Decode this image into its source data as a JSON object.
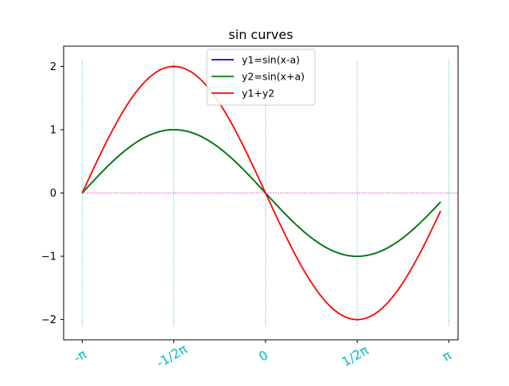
{
  "chart_data": {
    "type": "line",
    "title": "sin curves",
    "xlabel": "",
    "ylabel": "",
    "xlim": [
      -3.46,
      3.3
    ],
    "ylim": [
      -2.32,
      2.32
    ],
    "x_start": -3.14159,
    "x_end": 3.0,
    "y_ticks": [
      {
        "value": 2,
        "label": "2"
      },
      {
        "value": 1,
        "label": "1"
      },
      {
        "value": 0,
        "label": "0"
      },
      {
        "value": -1,
        "label": "−1"
      },
      {
        "value": -2,
        "label": "−2"
      }
    ],
    "x_ticks": [
      {
        "value": -3.14159,
        "label": "-π"
      },
      {
        "value": -1.5708,
        "label": "-1/2π"
      },
      {
        "value": 0,
        "label": "0"
      },
      {
        "value": 1.5708,
        "label": "1/2π"
      },
      {
        "value": 3.14159,
        "label": "π"
      }
    ],
    "x_tick_label_color": "#00c0c0",
    "x_tick_label_rotation": 30,
    "vlines": {
      "x": [
        -3.14159,
        -1.5708,
        0,
        1.5708,
        3.14159
      ],
      "ymin": -2.1,
      "ymax": 2.1,
      "color": "#00bfbf",
      "style": "dotted"
    },
    "hline": {
      "y": 0,
      "xmin": -3.14159,
      "xmax": 3.3,
      "color": "#bf00bf",
      "style": "dotted"
    },
    "series": [
      {
        "name": "y1=sin(x-a)",
        "formula": "-sin(x)",
        "color": "#0000ff"
      },
      {
        "name": "y2=sin(x+a)",
        "formula": "-sin(x)",
        "color": "#008000"
      },
      {
        "name": "y1+y2",
        "formula": "-2sin(x)",
        "color": "#ff0000"
      }
    ],
    "legend": {
      "loc": "upper center"
    },
    "grid": false
  }
}
